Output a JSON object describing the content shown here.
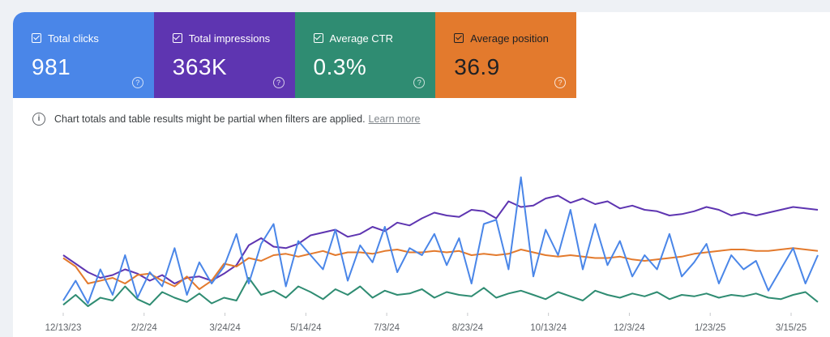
{
  "metrics": [
    {
      "label": "Total clicks",
      "value": "981",
      "color": "#4a86e8"
    },
    {
      "label": "Total impressions",
      "value": "363K",
      "color": "#5e35b1"
    },
    {
      "label": "Average CTR",
      "value": "0.3%",
      "color": "#2f8c72"
    },
    {
      "label": "Average position",
      "value": "36.9",
      "color": "#e37a2d"
    }
  ],
  "help_glyph": "?",
  "notice": {
    "icon": "info-icon",
    "text": "Chart totals and table results might be partial when filters are applied.",
    "link": "Learn more"
  },
  "chart_data": {
    "type": "line",
    "x_range": [
      "12/13/23",
      "4/7/25"
    ],
    "x_tick_labels": [
      "12/13/23",
      "2/2/24",
      "3/24/24",
      "5/14/24",
      "7/3/24",
      "8/23/24",
      "10/13/24",
      "12/3/24",
      "1/23/25",
      "3/15/25"
    ],
    "series": [
      {
        "color": "#5e35b1",
        "metric": "impressions",
        "values": [
          0.4,
          0.34,
          0.28,
          0.24,
          0.26,
          0.3,
          0.27,
          0.22,
          0.26,
          0.2,
          0.24,
          0.25,
          0.22,
          0.27,
          0.33,
          0.47,
          0.52,
          0.46,
          0.45,
          0.48,
          0.54,
          0.56,
          0.58,
          0.53,
          0.55,
          0.6,
          0.57,
          0.63,
          0.61,
          0.66,
          0.7,
          0.68,
          0.67,
          0.72,
          0.71,
          0.66,
          0.78,
          0.74,
          0.75,
          0.8,
          0.82,
          0.77,
          0.8,
          0.76,
          0.78,
          0.73,
          0.75,
          0.72,
          0.71,
          0.68,
          0.69,
          0.71,
          0.74,
          0.72,
          0.68,
          0.7,
          0.68,
          0.7,
          0.72,
          0.74,
          0.73,
          0.72
        ]
      },
      {
        "color": "#e37a2d",
        "metric": "position",
        "values": [
          0.38,
          0.32,
          0.2,
          0.22,
          0.24,
          0.2,
          0.26,
          0.27,
          0.22,
          0.18,
          0.25,
          0.16,
          0.22,
          0.34,
          0.32,
          0.38,
          0.36,
          0.4,
          0.41,
          0.39,
          0.41,
          0.43,
          0.4,
          0.42,
          0.42,
          0.41,
          0.43,
          0.44,
          0.42,
          0.42,
          0.43,
          0.42,
          0.43,
          0.4,
          0.41,
          0.4,
          0.41,
          0.44,
          0.42,
          0.4,
          0.39,
          0.4,
          0.39,
          0.38,
          0.38,
          0.39,
          0.37,
          0.36,
          0.37,
          0.38,
          0.39,
          0.41,
          0.42,
          0.43,
          0.44,
          0.44,
          0.43,
          0.43,
          0.44,
          0.45,
          0.44,
          0.43
        ]
      },
      {
        "color": "#2f8c72",
        "metric": "ctr",
        "values": [
          0.05,
          0.12,
          0.04,
          0.1,
          0.08,
          0.18,
          0.09,
          0.05,
          0.14,
          0.1,
          0.07,
          0.13,
          0.06,
          0.1,
          0.08,
          0.24,
          0.12,
          0.15,
          0.1,
          0.18,
          0.14,
          0.09,
          0.16,
          0.12,
          0.18,
          0.1,
          0.15,
          0.12,
          0.13,
          0.16,
          0.1,
          0.14,
          0.12,
          0.11,
          0.17,
          0.1,
          0.13,
          0.15,
          0.12,
          0.09,
          0.14,
          0.11,
          0.08,
          0.15,
          0.12,
          0.1,
          0.13,
          0.11,
          0.14,
          0.09,
          0.12,
          0.11,
          0.13,
          0.1,
          0.12,
          0.11,
          0.13,
          0.1,
          0.09,
          0.12,
          0.14,
          0.07
        ]
      },
      {
        "color": "#4a86e8",
        "metric": "clicks",
        "values": [
          0.08,
          0.22,
          0.06,
          0.3,
          0.12,
          0.4,
          0.1,
          0.28,
          0.18,
          0.45,
          0.12,
          0.35,
          0.2,
          0.32,
          0.55,
          0.2,
          0.48,
          0.62,
          0.18,
          0.5,
          0.4,
          0.3,
          0.58,
          0.22,
          0.47,
          0.35,
          0.6,
          0.28,
          0.45,
          0.4,
          0.55,
          0.33,
          0.52,
          0.2,
          0.62,
          0.65,
          0.3,
          0.95,
          0.25,
          0.58,
          0.4,
          0.72,
          0.3,
          0.62,
          0.33,
          0.5,
          0.25,
          0.4,
          0.3,
          0.55,
          0.25,
          0.35,
          0.48,
          0.2,
          0.4,
          0.3,
          0.36,
          0.15,
          0.3,
          0.45,
          0.2,
          0.4
        ]
      }
    ]
  }
}
